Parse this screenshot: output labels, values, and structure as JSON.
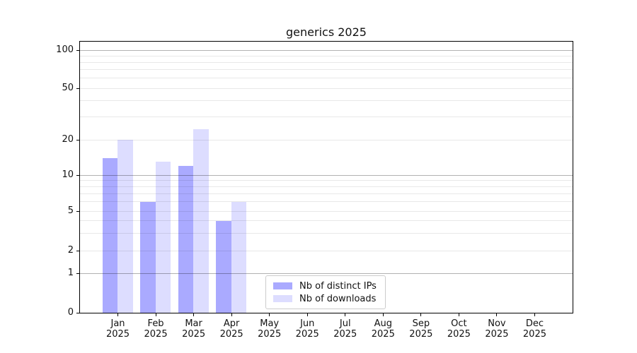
{
  "chart_data": {
    "type": "bar",
    "title": "generics 2025",
    "categories": [
      "Jan",
      "Feb",
      "Mar",
      "Apr",
      "May",
      "Jun",
      "Jul",
      "Aug",
      "Sep",
      "Oct",
      "Nov",
      "Dec"
    ],
    "x_tick_year": "2025",
    "series": [
      {
        "name": "Nb of distinct IPs",
        "color": "#aaaaff",
        "values": [
          14,
          6,
          12,
          4,
          0,
          0,
          0,
          0,
          0,
          0,
          0,
          0
        ]
      },
      {
        "name": "Nb of downloads",
        "color": "#ddddff",
        "values": [
          20,
          13,
          24,
          6,
          0,
          0,
          0,
          0,
          0,
          0,
          0,
          0
        ]
      }
    ],
    "xlabel": "",
    "ylabel": "",
    "yscale": "symlog",
    "ylim": [
      0,
      117
    ],
    "yticks": [
      0,
      1,
      2,
      5,
      10,
      20,
      50,
      100
    ],
    "major_grid_values": [
      1,
      10,
      100
    ],
    "minor_grid_values": [
      2,
      3,
      4,
      5,
      6,
      7,
      8,
      9,
      20,
      30,
      40,
      50,
      60,
      70,
      80,
      90
    ],
    "grid": true,
    "legend_position": "lower center"
  },
  "style": {
    "bar_distinct_ips_color": "#aaaaff",
    "bar_downloads_color": "#ddddff",
    "major_grid_color": "#b0b0b0",
    "minor_grid_color": "#e8e8e8",
    "axis_line_color": "#000000",
    "text_color": "#111111",
    "legend_border_color": "#cccccc",
    "background_color": "#ffffff"
  }
}
